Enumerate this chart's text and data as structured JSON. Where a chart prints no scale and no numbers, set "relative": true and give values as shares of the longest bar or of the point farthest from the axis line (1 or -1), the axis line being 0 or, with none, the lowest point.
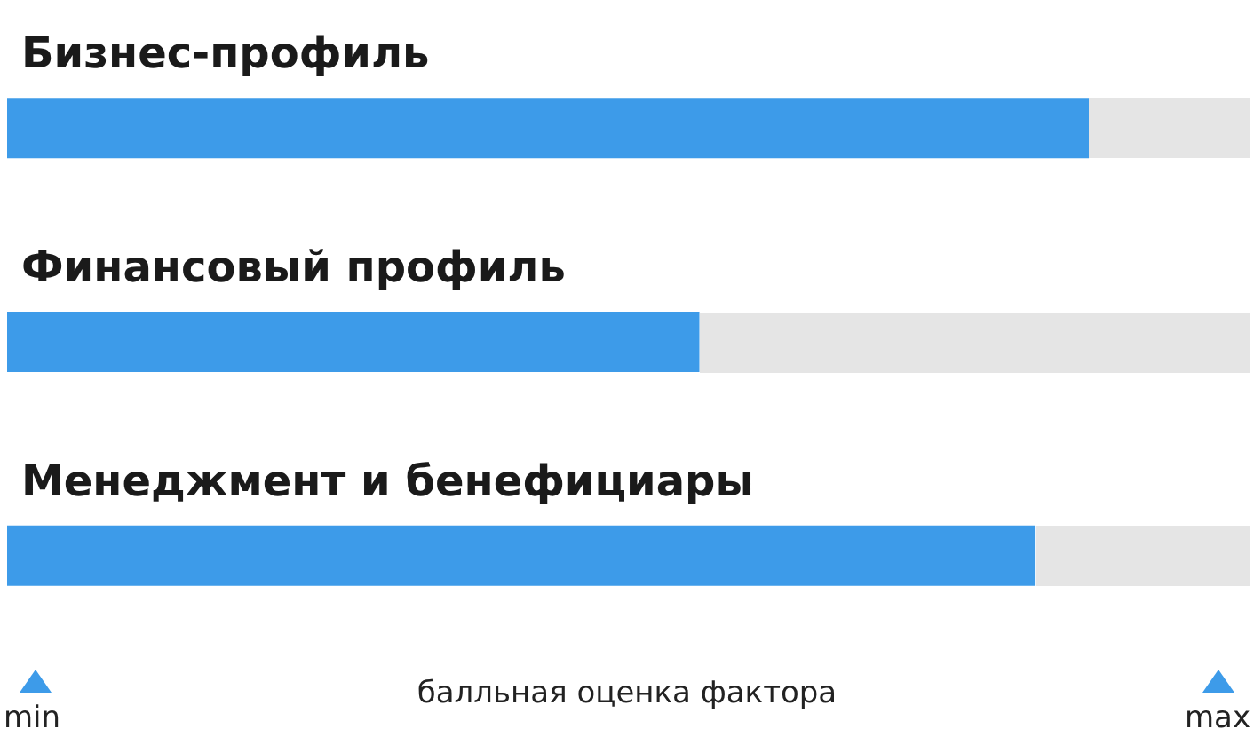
{
  "chart_data": {
    "type": "bar",
    "orientation": "horizontal",
    "relative": true,
    "categories": [
      "Бизнес-профиль",
      "Финансовый профиль",
      "Менеджмент и бенефициары"
    ],
    "values": [
      1,
      0.64,
      0.95
    ],
    "color": "#3d9be9",
    "xlabel": "балльная оценка фактора",
    "annotations": [
      "min",
      "max"
    ]
  }
}
